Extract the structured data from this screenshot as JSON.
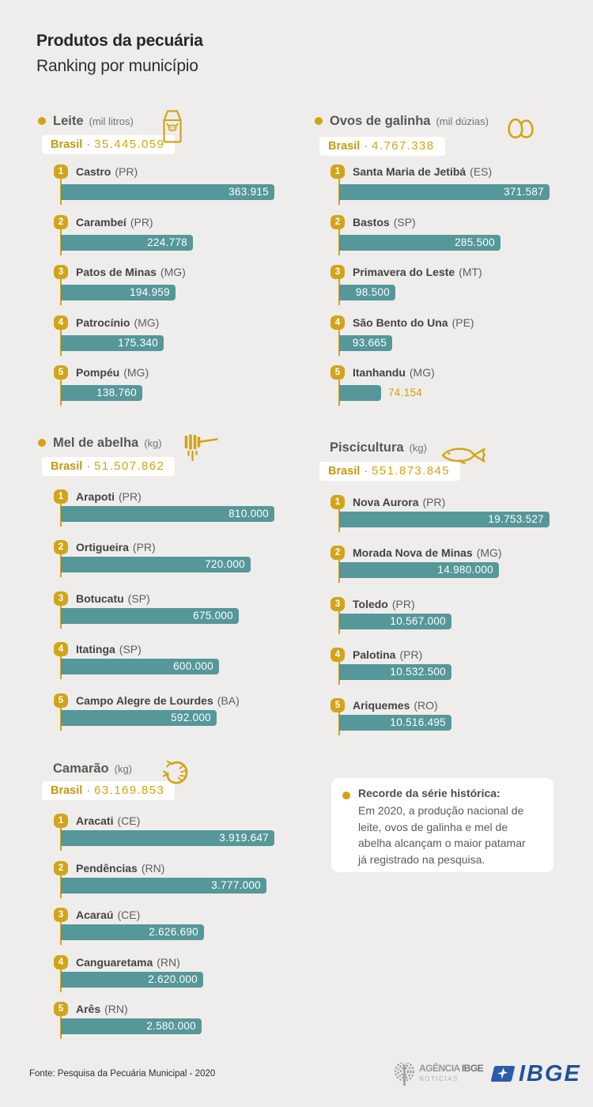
{
  "colors": {
    "background": "#eeedeb",
    "teal": "#569799",
    "gold": "#d2a413",
    "header_gray": "#57575a",
    "ibge_blue": "#1e539b",
    "logo_gray": "#9b9b9b",
    "white": "#ffffff"
  },
  "title": {
    "line1": "Produtos da pecuária",
    "line2": "Ranking por município"
  },
  "chart_data": [
    {
      "id": "leite",
      "type": "bar",
      "title": "Leite",
      "unit": "(mil litros)",
      "icon": "milk-carton-icon",
      "bullet": true,
      "total_label": "Brasil",
      "total_value": "35.445.059",
      "rows": [
        {
          "rank": 1,
          "name": "Castro",
          "state": "(PR)",
          "value": "363.915"
        },
        {
          "rank": 2,
          "name": "Carambeí",
          "state": "(PR)",
          "value": "224.778"
        },
        {
          "rank": 3,
          "name": "Patos de Minas",
          "state": "(MG)",
          "value": "194.959"
        },
        {
          "rank": 4,
          "name": "Patrocínio",
          "state": "(MG)",
          "value": "175.340"
        },
        {
          "rank": 5,
          "name": "Pompéu",
          "state": "(MG)",
          "value": "138.760"
        }
      ]
    },
    {
      "id": "ovos",
      "type": "bar",
      "title": "Ovos de galinha",
      "unit": "(mil dúzias)",
      "icon": "eggs-icon",
      "bullet": true,
      "total_label": "Brasil",
      "total_value": "4.767.338",
      "rows": [
        {
          "rank": 1,
          "name": "Santa Maria de Jetibá",
          "state": "(ES)",
          "value": "371.587"
        },
        {
          "rank": 2,
          "name": "Bastos",
          "state": "(SP)",
          "value": "285.500"
        },
        {
          "rank": 3,
          "name": "Primavera do Leste",
          "state": "(MT)",
          "value": "98.500"
        },
        {
          "rank": 4,
          "name": "São Bento do Una",
          "state": "(PE)",
          "value": "93.665"
        },
        {
          "rank": 5,
          "name": "Itanhandu",
          "state": "(MG)",
          "value": "74.154",
          "value_outside": true
        }
      ]
    },
    {
      "id": "mel",
      "type": "bar",
      "title": "Mel de abelha",
      "unit": "(kg)",
      "icon": "honey-dipper-icon",
      "bullet": true,
      "total_label": "Brasil",
      "total_value": "51.507.862",
      "rows": [
        {
          "rank": 1,
          "name": "Arapoti",
          "state": "(PR)",
          "value": "810.000"
        },
        {
          "rank": 2,
          "name": "Ortigueira",
          "state": "(PR)",
          "value": "720.000"
        },
        {
          "rank": 3,
          "name": "Botucatu",
          "state": "(SP)",
          "value": "675.000"
        },
        {
          "rank": 4,
          "name": "Itatinga",
          "state": "(SP)",
          "value": "600.000"
        },
        {
          "rank": 5,
          "name": "Campo Alegre de Lourdes",
          "state": "(BA)",
          "value": "592.000"
        }
      ]
    },
    {
      "id": "piscicultura",
      "type": "bar",
      "title": "Piscicultura",
      "unit": "(kg)",
      "icon": "fish-icon",
      "bullet": false,
      "total_label": "Brasil",
      "total_value": "551.873.845",
      "rows": [
        {
          "rank": 1,
          "name": "Nova Aurora",
          "state": "(PR)",
          "value": "19.753.527"
        },
        {
          "rank": 2,
          "name": "Morada Nova de Minas",
          "state": "(MG)",
          "value": "14.980.000"
        },
        {
          "rank": 3,
          "name": "Toledo",
          "state": "(PR)",
          "value": "10.567.000"
        },
        {
          "rank": 4,
          "name": "Palotina",
          "state": "(PR)",
          "value": "10.532.500"
        },
        {
          "rank": 5,
          "name": "Ariquemes",
          "state": "(RO)",
          "value": "10.516.495"
        }
      ]
    },
    {
      "id": "camarao",
      "type": "bar",
      "title": "Camarão",
      "unit": "(kg)",
      "icon": "shrimp-icon",
      "bullet": false,
      "total_label": "Brasil",
      "total_value": "63.169.853",
      "rows": [
        {
          "rank": 1,
          "name": "Aracati",
          "state": "(CE)",
          "value": "3.919.647"
        },
        {
          "rank": 2,
          "name": "Pendências",
          "state": "(RN)",
          "value": "3.777.000"
        },
        {
          "rank": 3,
          "name": "Acaraú",
          "state": "(CE)",
          "value": "2.626.690"
        },
        {
          "rank": 4,
          "name": "Canguaretama",
          "state": "(RN)",
          "value": "2.620.000"
        },
        {
          "rank": 5,
          "name": "Arês",
          "state": "(RN)",
          "value": "2.580.000"
        }
      ]
    }
  ],
  "note": {
    "title": "Recorde da série histórica:",
    "lines": [
      "Em 2020, a produção nacional de",
      "leite, ovos de galinha e mel de",
      "abelha alcançam o maior patamar",
      "já registrado na pesquisa."
    ]
  },
  "footer": {
    "source": "Fonte: Pesquisa da Pecuária Municipal - 2020",
    "agencia_word1": "AGÊNCIA",
    "agencia_word2": "IBGE",
    "agencia_line2": "NOTÍCIAS",
    "ibge_text": "IBGE"
  }
}
